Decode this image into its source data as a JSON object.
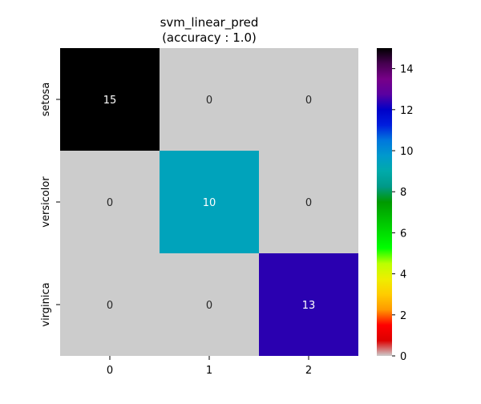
{
  "chart_data": {
    "type": "heatmap",
    "title_line1": "svm_linear_pred",
    "title_line2": "(accuracy : 1.0)",
    "x_categories": [
      "0",
      "1",
      "2"
    ],
    "y_categories": [
      "setosa",
      "versicolor",
      "virginica"
    ],
    "matrix": [
      [
        15,
        0,
        0
      ],
      [
        0,
        10,
        0
      ],
      [
        0,
        0,
        13
      ]
    ],
    "colorbar": {
      "min": 0,
      "max": 15,
      "ticks": [
        0,
        2,
        4,
        6,
        8,
        10,
        12,
        14
      ],
      "colormap": "nipy_spectral_r"
    },
    "zero_cell_color": "#cccccc",
    "text_dark": "#262626",
    "text_light": "#ffffff"
  }
}
